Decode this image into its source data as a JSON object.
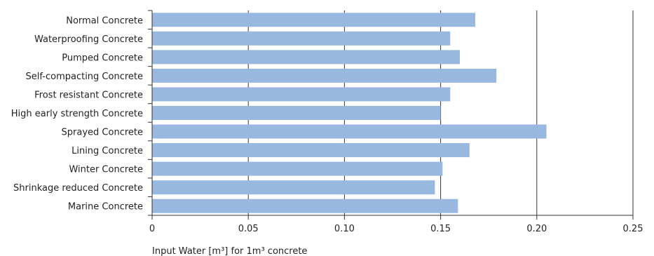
{
  "chart_data": {
    "type": "bar",
    "orientation": "horizontal",
    "categories": [
      "Normal Concrete",
      "Waterproofing Concrete",
      "Pumped Concrete",
      "Self-compacting Concrete",
      "Frost resistant Concrete",
      "High early strength Concrete",
      "Sprayed Concrete",
      "Lining Concrete",
      "Winter Concrete",
      "Shrinkage reduced Concrete",
      "Marine Concrete"
    ],
    "values": [
      0.168,
      0.155,
      0.16,
      0.179,
      0.155,
      0.15,
      0.205,
      0.165,
      0.151,
      0.147,
      0.159
    ],
    "xlabel": "Input Water [m³] for 1m³ concrete",
    "xlim": [
      0,
      0.25
    ],
    "xticks": [
      0,
      0.05,
      0.1,
      0.15,
      0.2,
      0.25
    ],
    "xtick_labels": [
      "0",
      "0.05",
      "0.10",
      "0.15",
      "0.20",
      "0.25"
    ],
    "grid": "vertical",
    "bar_color": "#98b8df",
    "grid_color": "#333333"
  }
}
